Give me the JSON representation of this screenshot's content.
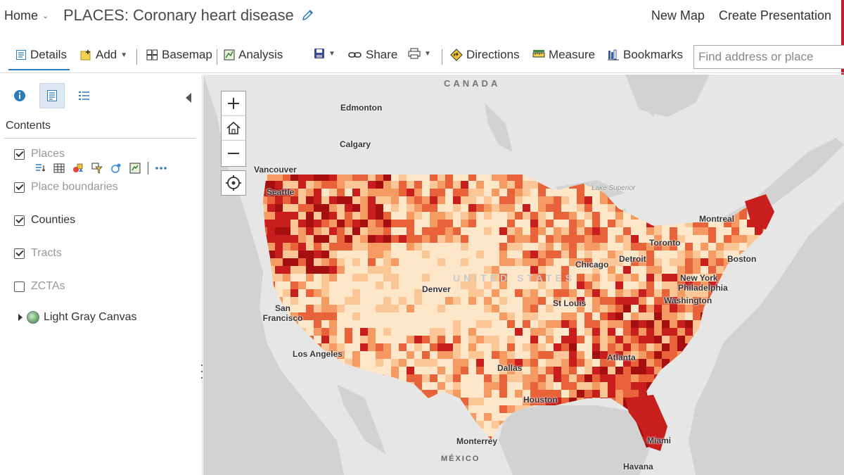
{
  "header": {
    "home_label": "Home",
    "title": "PLACES: Coronary heart disease",
    "links": [
      "New Map",
      "Create Presentation"
    ]
  },
  "toolbar": {
    "details": "Details",
    "add": "Add",
    "basemap": "Basemap",
    "analysis": "Analysis",
    "share": "Share",
    "directions": "Directions",
    "measure": "Measure",
    "bookmarks": "Bookmarks",
    "search_placeholder": "Find address or place"
  },
  "sidebar": {
    "contents_title": "Contents",
    "layers": [
      {
        "label": "Places",
        "checked": true,
        "dimmed": true
      },
      {
        "label": "Place boundaries",
        "checked": true,
        "dimmed": true
      },
      {
        "label": "Counties",
        "checked": true,
        "dimmed": false
      },
      {
        "label": "Tracts",
        "checked": true,
        "dimmed": true
      },
      {
        "label": "ZCTAs",
        "checked": false,
        "dimmed": true
      }
    ],
    "basemap_label": "Light Gray Canvas"
  },
  "map": {
    "country_labels": {
      "canada": "CANADA",
      "mexico": "MÉXICO",
      "us": "UNITED STATES"
    },
    "lake_label": "Lake Superior",
    "cities": {
      "edmonton": "Edmonton",
      "calgary": "Calgary",
      "vancouver": "Vancouver",
      "seattle": "Seattle",
      "montreal": "Montreal",
      "toronto": "Toronto",
      "chicago": "Chicago",
      "detroit": "Detroit",
      "boston": "Boston",
      "new_york": "New York",
      "philadelphia": "Philadelphia",
      "washington": "Washington",
      "denver": "Denver",
      "st_louis": "St Louis",
      "san_francisco": "San Francisco",
      "los_angeles": "Los Angeles",
      "dallas": "Dallas",
      "atlanta": "Atlanta",
      "houston": "Houston",
      "monterrey": "Monterrey",
      "miami": "Miami",
      "havana": "Havana"
    },
    "choropleth_colors": [
      "#fde7c8",
      "#fbc796",
      "#f59a62",
      "#e8623a",
      "#c81e1e",
      "#a50f0f"
    ]
  }
}
